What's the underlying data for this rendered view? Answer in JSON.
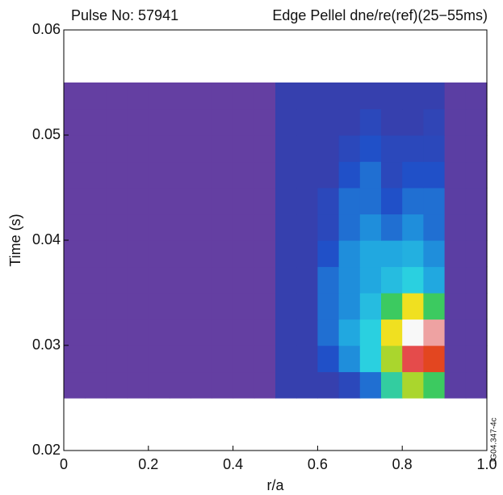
{
  "chart_data": {
    "type": "heatmap",
    "title_left": "Pulse No: 57941",
    "title_right": "Edge Pellel dne/re(ref)(25−55ms)",
    "xlabel": "r/a",
    "ylabel": "Time (s)",
    "side_note": "JG04.347-4c",
    "xlim": [
      0,
      1
    ],
    "ylim": [
      0.02,
      0.06
    ],
    "xticks": [
      0,
      0.2,
      0.4,
      0.6,
      0.8,
      {
        "value": 1,
        "label": "1.0"
      }
    ],
    "yticks": [
      0.02,
      0.03,
      0.04,
      0.05,
      0.06
    ],
    "xbins": [
      0,
      0.05,
      0.1,
      0.15,
      0.2,
      0.25,
      0.3,
      0.35,
      0.4,
      0.45,
      0.5,
      0.55,
      0.6,
      0.65,
      0.7,
      0.75,
      0.8,
      0.85,
      0.9,
      0.95,
      1
    ],
    "ybins": [
      0.025,
      0.0275,
      0.03,
      0.0325,
      0.035,
      0.0375,
      0.04,
      0.0425,
      0.045,
      0.0475,
      0.05,
      0.0525,
      0.055
    ],
    "zlim": [
      0,
      1
    ],
    "colormap": [
      "#7040a0",
      "#3c3ca8",
      "#2050c8",
      "#1f9ee0",
      "#2ad0e0",
      "#40c840",
      "#f0e020",
      "#e02020",
      "#f8f8f8"
    ],
    "z": [
      [
        0.03,
        0.03,
        0.03,
        0.03,
        0.03,
        0.03,
        0.03,
        0.03,
        0.03,
        0.03,
        0.15,
        0.15,
        0.15,
        0.2,
        0.3,
        0.55,
        0.7,
        0.6,
        0.05,
        0.05
      ],
      [
        0.03,
        0.03,
        0.03,
        0.03,
        0.03,
        0.03,
        0.03,
        0.03,
        0.03,
        0.03,
        0.15,
        0.15,
        0.25,
        0.35,
        0.5,
        0.7,
        0.9,
        0.85,
        0.05,
        0.05
      ],
      [
        0.03,
        0.03,
        0.03,
        0.03,
        0.03,
        0.03,
        0.03,
        0.03,
        0.03,
        0.03,
        0.15,
        0.15,
        0.3,
        0.4,
        0.5,
        0.75,
        1,
        0.95,
        0.05,
        0.05
      ],
      [
        0.03,
        0.03,
        0.03,
        0.03,
        0.03,
        0.03,
        0.03,
        0.03,
        0.03,
        0.03,
        0.15,
        0.15,
        0.3,
        0.35,
        0.45,
        0.6,
        0.75,
        0.6,
        0.05,
        0.05
      ],
      [
        0.03,
        0.03,
        0.03,
        0.03,
        0.03,
        0.03,
        0.03,
        0.03,
        0.03,
        0.03,
        0.15,
        0.15,
        0.3,
        0.35,
        0.4,
        0.45,
        0.5,
        0.4,
        0.05,
        0.05
      ],
      [
        0.03,
        0.03,
        0.03,
        0.03,
        0.03,
        0.03,
        0.03,
        0.03,
        0.03,
        0.03,
        0.15,
        0.15,
        0.25,
        0.35,
        0.4,
        0.4,
        0.42,
        0.35,
        0.05,
        0.05
      ],
      [
        0.03,
        0.03,
        0.03,
        0.03,
        0.03,
        0.03,
        0.03,
        0.03,
        0.03,
        0.03,
        0.15,
        0.15,
        0.2,
        0.3,
        0.35,
        0.3,
        0.35,
        0.3,
        0.05,
        0.05
      ],
      [
        0.03,
        0.03,
        0.03,
        0.03,
        0.03,
        0.03,
        0.03,
        0.03,
        0.03,
        0.03,
        0.15,
        0.15,
        0.2,
        0.3,
        0.3,
        0.25,
        0.3,
        0.3,
        0.05,
        0.05
      ],
      [
        0.03,
        0.03,
        0.03,
        0.03,
        0.03,
        0.03,
        0.03,
        0.03,
        0.03,
        0.03,
        0.15,
        0.15,
        0.15,
        0.25,
        0.3,
        0.2,
        0.25,
        0.25,
        0.05,
        0.05
      ],
      [
        0.03,
        0.03,
        0.03,
        0.03,
        0.03,
        0.03,
        0.03,
        0.03,
        0.03,
        0.03,
        0.15,
        0.15,
        0.15,
        0.2,
        0.25,
        0.2,
        0.2,
        0.2,
        0.05,
        0.05
      ],
      [
        0.03,
        0.03,
        0.03,
        0.03,
        0.03,
        0.03,
        0.03,
        0.03,
        0.03,
        0.03,
        0.15,
        0.15,
        0.15,
        0.15,
        0.2,
        0.15,
        0.15,
        0.18,
        0.05,
        0.05
      ],
      [
        0.03,
        0.03,
        0.03,
        0.03,
        0.03,
        0.03,
        0.03,
        0.03,
        0.03,
        0.03,
        0.15,
        0.15,
        0.15,
        0.15,
        0.15,
        0.15,
        0.15,
        0.15,
        0.05,
        0.05
      ]
    ]
  }
}
